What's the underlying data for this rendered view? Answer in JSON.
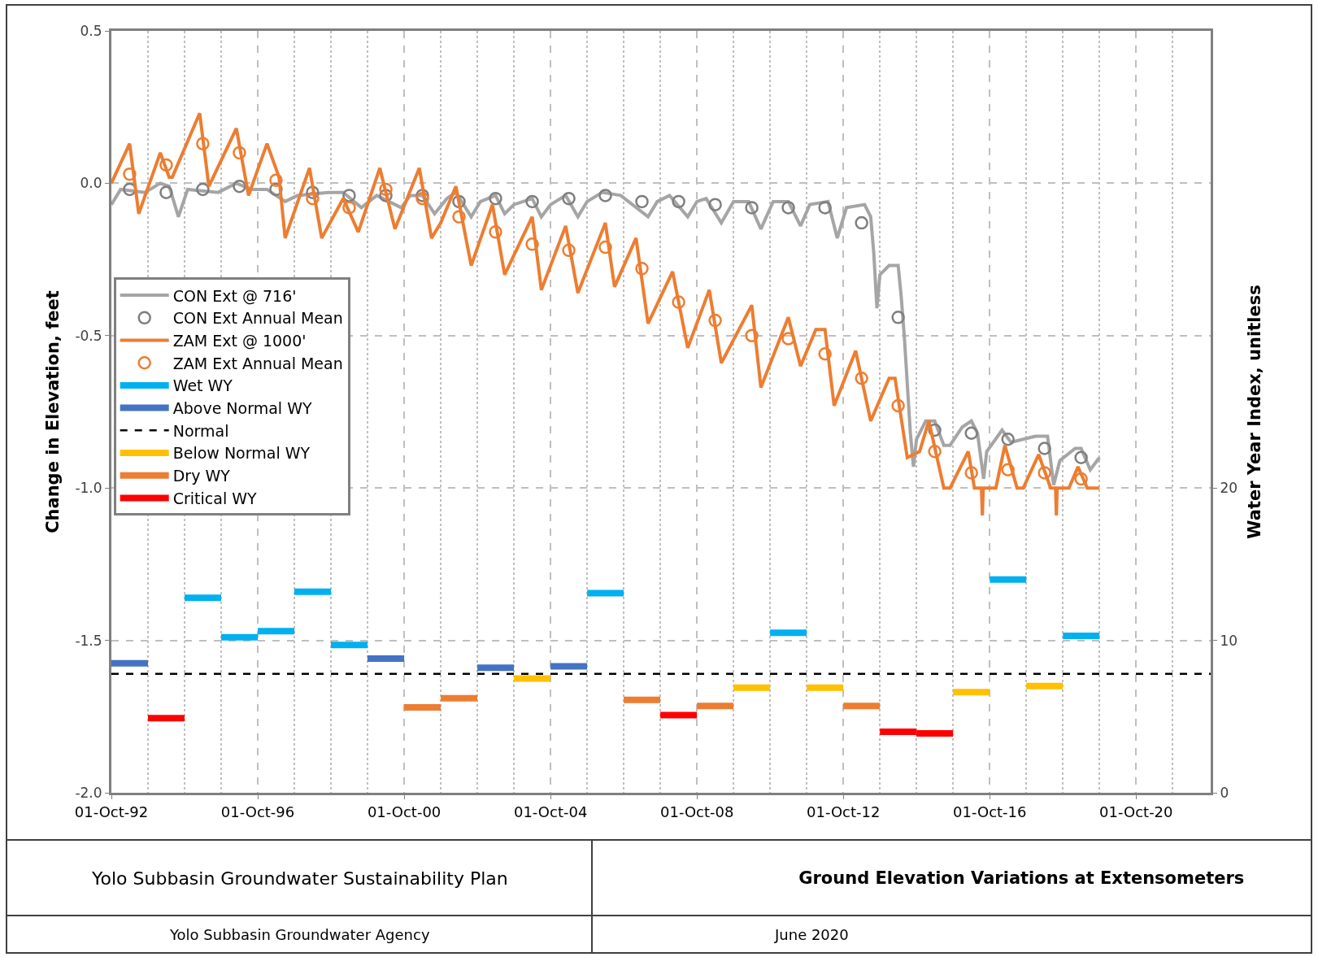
{
  "chart_data": {
    "type": "line",
    "title": "Ground Elevation Variations at Extensometers",
    "ylabel": "Change in Elevation, feet",
    "y2label": "Water Year Index, unitless",
    "annotations": [
      "Yolo Subbasin Groundwater Sustainability Plan",
      "Yolo Subbasin Groundwater Agency",
      "June 2020"
    ],
    "xlim": [
      "1992-10-01",
      "2022-10-15"
    ],
    "xticks": [
      {
        "value": "1992-10-01",
        "label": "01-Oct-92"
      },
      {
        "value": "1993-10-01",
        "label": null
      },
      {
        "value": "1994-10-01",
        "label": null
      },
      {
        "value": "1995-10-01",
        "label": null
      },
      {
        "value": "1996-10-01",
        "label": "01-Oct-96"
      },
      {
        "value": "1997-10-01",
        "label": null
      },
      {
        "value": "1998-10-01",
        "label": null
      },
      {
        "value": "1999-10-01",
        "label": null
      },
      {
        "value": "2000-10-01",
        "label": "01-Oct-00"
      },
      {
        "value": "2001-10-01",
        "label": null
      },
      {
        "value": "2002-10-01",
        "label": null
      },
      {
        "value": "2003-10-01",
        "label": null
      },
      {
        "value": "2004-10-01",
        "label": "01-Oct-04"
      },
      {
        "value": "2005-10-01",
        "label": null
      },
      {
        "value": "2006-10-01",
        "label": null
      },
      {
        "value": "2007-10-01",
        "label": null
      },
      {
        "value": "2008-10-01",
        "label": "01-Oct-08"
      },
      {
        "value": "2009-10-01",
        "label": null
      },
      {
        "value": "2010-10-01",
        "label": null
      },
      {
        "value": "2011-10-01",
        "label": null
      },
      {
        "value": "2012-10-01",
        "label": "01-Oct-12"
      },
      {
        "value": "2013-10-01",
        "label": null
      },
      {
        "value": "2014-10-01",
        "label": null
      },
      {
        "value": "2015-10-01",
        "label": null
      },
      {
        "value": "2016-10-01",
        "label": "01-Oct-16"
      },
      {
        "value": "2017-10-01",
        "label": null
      },
      {
        "value": "2018-10-01",
        "label": null
      },
      {
        "value": "2019-10-01",
        "label": null
      },
      {
        "value": "2020-10-01",
        "label": "01-Oct-20"
      },
      {
        "value": "2021-10-01",
        "label": null
      }
    ],
    "ylim": [
      -2.0,
      0.5
    ],
    "yticks": [
      {
        "value": -2.0,
        "label": "-2.0"
      },
      {
        "value": -1.5,
        "label": "-1.5"
      },
      {
        "value": -1.0,
        "label": "-1.0"
      },
      {
        "value": -0.5,
        "label": "-0.5"
      },
      {
        "value": 0,
        "label": "0.0"
      },
      {
        "value": 0.5,
        "label": "0.5"
      }
    ],
    "y2lim": [
      0,
      50
    ],
    "y2ticks": [
      0,
      10,
      20
    ],
    "grid": true,
    "legend": "left",
    "series": [
      {
        "name": "CON Ext @ 716'",
        "marker": "none",
        "color": "#a5a5a5",
        "x": [
          "1992-10",
          "1993-01",
          "1993-09",
          "1994-02",
          "1994-05",
          "1994-08",
          "1994-11",
          "1995-09",
          "1996-03",
          "1996-08",
          "1997-01",
          "1997-07",
          "1997-11",
          "1998-09",
          "1999-02",
          "1999-08",
          "2000-01",
          "2000-09",
          "2000-12",
          "2001-04",
          "2001-08",
          "2001-12",
          "2002-03",
          "2002-08",
          "2002-11",
          "2003-04",
          "2003-07",
          "2003-10",
          "2004-04",
          "2004-07",
          "2004-10",
          "2005-03",
          "2005-07",
          "2005-10",
          "2006-03",
          "2006-09",
          "2007-06",
          "2007-09",
          "2008-01",
          "2008-07",
          "2008-10",
          "2009-01",
          "2009-06",
          "2009-10",
          "2010-03",
          "2010-07",
          "2010-11",
          "2011-04",
          "2011-08",
          "2011-11",
          "2012-05",
          "2012-08",
          "2012-11",
          "2013-05",
          "2013-07",
          "2013-08",
          "2013-09",
          "2013-10",
          "2014-01",
          "2014-04",
          "2014-05",
          "2014-06",
          "2014-08",
          "2014-09",
          "2014-10",
          "2015-01",
          "2015-04",
          "2015-07",
          "2015-09",
          "2016-01",
          "2016-04",
          "2016-06",
          "2016-08",
          "2016-09",
          "2017-02",
          "2017-05",
          "2018-01",
          "2018-05",
          "2018-07",
          "2018-09",
          "2019-02",
          "2019-04",
          "2019-07",
          "2019-10"
        ],
        "values": [
          -0.07,
          -0.02,
          -0.03,
          0.0,
          -0.01,
          -0.11,
          -0.02,
          -0.03,
          0.0,
          -0.02,
          -0.02,
          -0.06,
          -0.04,
          -0.03,
          -0.03,
          -0.08,
          -0.04,
          -0.08,
          -0.04,
          -0.04,
          -0.1,
          -0.05,
          -0.03,
          -0.11,
          -0.06,
          -0.04,
          -0.1,
          -0.07,
          -0.05,
          -0.11,
          -0.07,
          -0.04,
          -0.11,
          -0.06,
          -0.03,
          -0.04,
          -0.11,
          -0.06,
          -0.04,
          -0.11,
          -0.06,
          -0.05,
          -0.13,
          -0.06,
          -0.06,
          -0.15,
          -0.06,
          -0.06,
          -0.14,
          -0.07,
          -0.06,
          -0.18,
          -0.08,
          -0.07,
          -0.11,
          -0.23,
          -0.41,
          -0.3,
          -0.27,
          -0.27,
          -0.37,
          -0.5,
          -0.82,
          -0.93,
          -0.84,
          -0.78,
          -0.78,
          -0.86,
          -0.86,
          -0.8,
          -0.78,
          -0.82,
          -0.97,
          -0.88,
          -0.81,
          -0.85,
          -0.83,
          -0.83,
          -0.99,
          -0.91,
          -0.87,
          -0.87,
          -0.94,
          -0.9
        ]
      },
      {
        "name": "CON Ext Annual Mean",
        "type": "scatter",
        "marker": "circle",
        "color": "#7f7f7f",
        "x": [
          "1993-04",
          "1994-04",
          "1995-04",
          "1996-04",
          "1997-04",
          "1998-04",
          "1999-04",
          "2000-04",
          "2001-04",
          "2002-04",
          "2003-04",
          "2004-04",
          "2005-04",
          "2006-04",
          "2007-04",
          "2008-04",
          "2009-04",
          "2010-04",
          "2011-04",
          "2012-04",
          "2013-04",
          "2014-04",
          "2015-04",
          "2016-04",
          "2017-04",
          "2018-04",
          "2019-04"
        ],
        "values": [
          -0.02,
          -0.03,
          -0.02,
          -0.01,
          -0.02,
          -0.03,
          -0.04,
          -0.04,
          -0.04,
          -0.06,
          -0.05,
          -0.06,
          -0.05,
          -0.04,
          -0.06,
          -0.06,
          -0.07,
          -0.08,
          -0.08,
          -0.08,
          -0.13,
          -0.44,
          -0.81,
          -0.82,
          -0.84,
          -0.87,
          -0.9
        ]
      },
      {
        "name": "ZAM Ext @ 1000'",
        "marker": "none",
        "color": "#ed7d31",
        "x": [
          "1992-10",
          "1993-04",
          "1993-07",
          "1994-02",
          "1994-05",
          "1994-06",
          "1995-03",
          "1995-06",
          "1996-03",
          "1996-07",
          "1997-01",
          "1997-05",
          "1997-07",
          "1998-03",
          "1998-07",
          "1999-02",
          "1999-07",
          "2000-02",
          "2000-07",
          "2001-03",
          "2001-07",
          "2001-10",
          "2002-03",
          "2002-08",
          "2003-03",
          "2003-07",
          "2004-04",
          "2004-07",
          "2005-03",
          "2005-07",
          "2006-04",
          "2006-07",
          "2007-02",
          "2007-06",
          "2008-02",
          "2008-07",
          "2009-02",
          "2009-06",
          "2010-04",
          "2010-07",
          "2011-04",
          "2011-08",
          "2012-01",
          "2012-04",
          "2012-07",
          "2013-02",
          "2013-07",
          "2014-01",
          "2014-03",
          "2014-07",
          "2014-11",
          "2015-02",
          "2015-07",
          "2015-09",
          "2016-03",
          "2016-05",
          "2016-07-10",
          "2016-07-20",
          "2016-07-28",
          "2016-12",
          "2017-03",
          "2017-07",
          "2017-09",
          "2018-02",
          "2018-06",
          "2018-07-20",
          "2018-07-28",
          "2018-08-05",
          "2018-12",
          "2019-03",
          "2019-06",
          "2019-10"
        ],
        "values": [
          0.0,
          0.13,
          -0.1,
          0.1,
          0.02,
          0.02,
          0.23,
          -0.01,
          0.18,
          -0.04,
          0.13,
          0.02,
          -0.18,
          0.05,
          -0.18,
          -0.05,
          -0.16,
          0.05,
          -0.15,
          0.05,
          -0.18,
          -0.13,
          -0.01,
          -0.27,
          -0.07,
          -0.3,
          -0.11,
          -0.35,
          -0.14,
          -0.36,
          -0.13,
          -0.34,
          -0.18,
          -0.46,
          -0.29,
          -0.54,
          -0.35,
          -0.59,
          -0.4,
          -0.67,
          -0.44,
          -0.6,
          -0.48,
          -0.48,
          -0.73,
          -0.55,
          -0.78,
          -0.64,
          -0.64,
          -0.9,
          -0.88,
          -0.78,
          -1.0,
          -1.0,
          -0.88,
          -1.0,
          -1.0,
          -1.09,
          -1.0,
          -1.0,
          -0.86,
          -1.0,
          -1.0,
          -0.89,
          -1.0,
          -1.0,
          -1.09,
          -1.0,
          -1.0,
          -0.93,
          -1.0,
          -1.0
        ]
      },
      {
        "name": "ZAM Ext Annual Mean",
        "type": "scatter",
        "marker": "circle",
        "color": "#ed7d31",
        "x": [
          "1993-04",
          "1994-04",
          "1995-04",
          "1996-04",
          "1997-04",
          "1998-04",
          "1999-04",
          "2000-04",
          "2001-04",
          "2002-04",
          "2003-04",
          "2004-04",
          "2005-04",
          "2006-04",
          "2007-04",
          "2008-04",
          "2009-04",
          "2010-04",
          "2011-04",
          "2012-04",
          "2013-04",
          "2014-04",
          "2015-04",
          "2016-04",
          "2017-04",
          "2018-04",
          "2019-04"
        ],
        "values": [
          0.03,
          0.06,
          0.13,
          0.1,
          0.01,
          -0.05,
          -0.08,
          -0.02,
          -0.05,
          -0.11,
          -0.16,
          -0.2,
          -0.22,
          -0.21,
          -0.28,
          -0.39,
          -0.45,
          -0.5,
          -0.51,
          -0.56,
          -0.64,
          -0.73,
          -0.88,
          -0.95,
          -0.94,
          -0.95,
          -0.97
        ]
      },
      {
        "name": "Wet WY",
        "axis": "y2",
        "marker": "none",
        "color": "#00b0f0",
        "x": [
          "1994-10-01",
          "1995-10-01",
          null,
          "1995-10-01",
          "1996-10-01",
          null,
          "1996-10-01",
          "1997-10-01",
          null,
          "1997-10-01",
          "1998-10-01",
          null,
          "1998-10-01",
          "1999-10-01",
          null,
          "2005-10-01",
          "2006-10-01",
          null,
          "2010-10-01",
          "2011-10-01",
          null,
          "2016-10-01",
          "2017-10-01",
          null,
          "2018-10-01",
          "2019-10-01",
          null
        ],
        "values": [
          12.8,
          12.8,
          null,
          10.2,
          10.2,
          null,
          10.6,
          10.6,
          null,
          13.2,
          13.2,
          null,
          9.7,
          9.7,
          null,
          13.1,
          13.1,
          null,
          10.5,
          10.5,
          null,
          14.0,
          14.0,
          null,
          10.3,
          10.3,
          null
        ]
      },
      {
        "name": "Above Normal WY",
        "axis": "y2",
        "marker": "none",
        "color": "#4472c4",
        "x": [
          "1992-10-01",
          "1993-10-01",
          null,
          "1999-10-01",
          "2000-10-01",
          null,
          "2002-10-01",
          "2003-10-01",
          null,
          "2004-10-01",
          "2005-10-01",
          null
        ],
        "values": [
          8.5,
          8.5,
          null,
          8.8,
          8.8,
          null,
          8.2,
          8.2,
          null,
          8.3,
          8.3,
          null
        ]
      },
      {
        "name": "Normal",
        "axis": "y2",
        "marker": "none",
        "line_style": "dashed",
        "color": "#000000",
        "x": [
          "1992-10-01",
          "2022-10-15"
        ],
        "values": [
          7.8,
          7.8
        ]
      },
      {
        "name": "Below Normal WY",
        "axis": "y2",
        "marker": "none",
        "color": "#ffc000",
        "x": [
          "2003-10-01",
          "2004-10-01",
          null,
          "2009-10-01",
          "2010-10-01",
          null,
          "2011-10-01",
          "2012-10-01",
          null,
          "2015-10-01",
          "2016-10-01",
          null,
          "2017-10-01",
          "2018-10-01",
          null
        ],
        "values": [
          7.5,
          7.5,
          null,
          6.9,
          6.9,
          null,
          6.9,
          6.9,
          null,
          6.6,
          6.6,
          null,
          7.0,
          7.0,
          null
        ]
      },
      {
        "name": "Dry WY",
        "axis": "y2",
        "marker": "none",
        "color": "#ed7d31",
        "x": [
          "2000-10-01",
          "2001-10-01",
          null,
          "2001-10-01",
          "2002-10-01",
          null,
          "2006-10-01",
          "2007-10-01",
          null,
          "2008-10-01",
          "2009-10-01",
          null,
          "2012-10-01",
          "2013-10-01",
          null
        ],
        "values": [
          5.6,
          5.6,
          null,
          6.2,
          6.2,
          null,
          6.1,
          6.1,
          null,
          5.7,
          5.7,
          null,
          5.7,
          5.7,
          null
        ]
      },
      {
        "name": "Critical WY",
        "axis": "y2",
        "marker": "none",
        "color": "#ff0000",
        "x": [
          "1993-10-01",
          "1994-10-01",
          null,
          "2007-10-01",
          "2008-10-01",
          null,
          "2013-10-01",
          "2014-10-01",
          null,
          "2014-10-01",
          "2015-10-01",
          null
        ],
        "values": [
          4.9,
          4.9,
          null,
          5.1,
          5.1,
          null,
          4.0,
          4.0,
          null,
          3.9,
          3.9,
          null
        ]
      }
    ]
  }
}
